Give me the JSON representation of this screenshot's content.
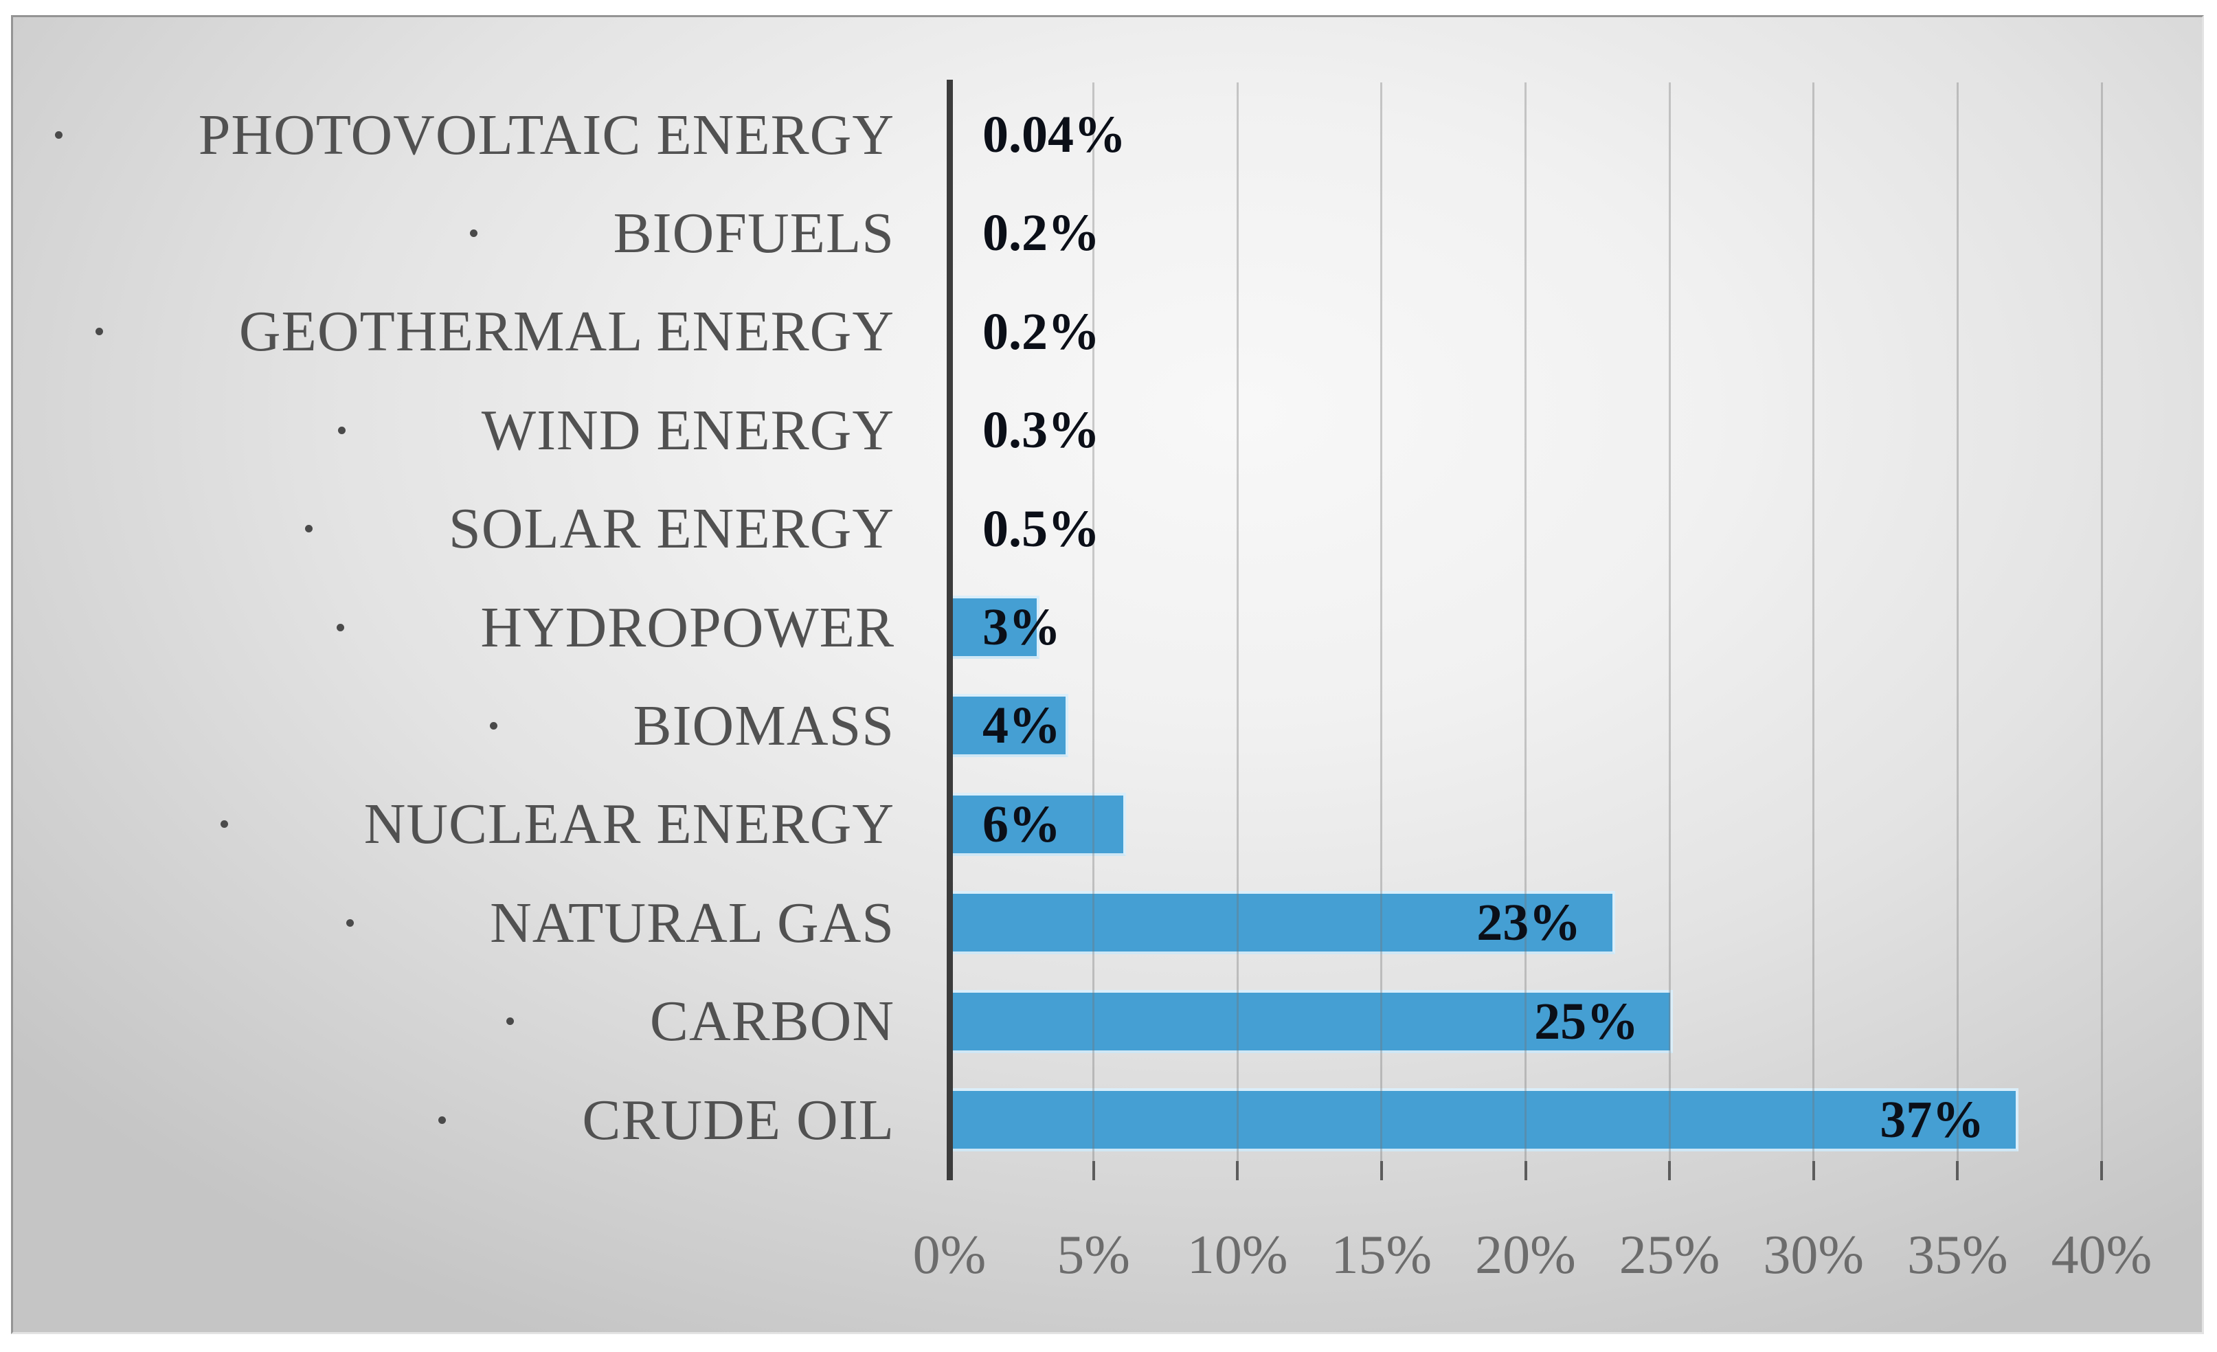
{
  "chart_data": {
    "type": "bar",
    "orientation": "horizontal",
    "title": "",
    "categories": [
      "PHOTOVOLTAIC ENERGY",
      "BIOFUELS",
      "GEOTHERMAL ENERGY",
      "WIND ENERGY",
      "SOLAR ENERGY",
      "HYDROPOWER",
      "BIOMASS",
      "NUCLEAR ENERGY",
      "NATURAL GAS",
      "CARBON",
      "CRUDE OIL"
    ],
    "values": [
      0.04,
      0.2,
      0.2,
      0.3,
      0.5,
      3,
      4,
      6,
      23,
      25,
      37
    ],
    "value_labels": [
      "0.04%",
      "0.2%",
      "0.2%",
      "0.3%",
      "0.5%",
      "3%",
      "4%",
      "6%",
      "23%",
      "25%",
      "37%"
    ],
    "x_tick_labels": [
      "0%",
      "5%",
      "10%",
      "15%",
      "20%",
      "25%",
      "30%",
      "35%",
      "40%"
    ],
    "xlim": [
      0,
      40
    ],
    "x_tick_step": 5,
    "grid": "vertical-gridlines-every-5pct-drawn-over-bars",
    "legend": "none",
    "bullet_marker": "dot-before-each-category-label",
    "colors": {
      "bar": "#459fd3",
      "bar_edge_highlight": "#daeefa",
      "axis_line": "#3c3c3c",
      "gridline": "rgba(115,115,115,0.35)",
      "tick": "#5c5c5c",
      "category_text": "#515151",
      "value_text": "#0b0f18",
      "axis_tick_text": "#6c6c6c",
      "background_center": "#f8f8f8",
      "background_edge": "#c5c5c5",
      "frame_border": "#949494"
    }
  }
}
